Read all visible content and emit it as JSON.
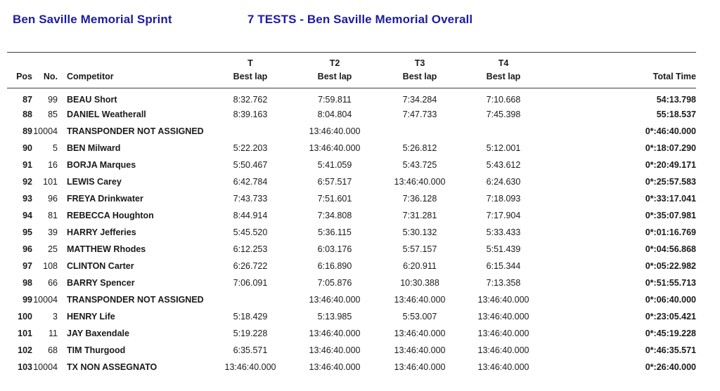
{
  "header": {
    "event_title": "Ben Saville Memorial Sprint",
    "overall_title": "7 TESTS - Ben Saville Memorial Overall",
    "title_color": "#1c1ca3"
  },
  "table": {
    "columns": {
      "pos": "Pos",
      "no": "No.",
      "competitor": "Competitor",
      "t1_top": "T",
      "t2_top": "T2",
      "t3_top": "T3",
      "t4_top": "T4",
      "best_lap": "Best lap",
      "total": "Total Time"
    },
    "rows": [
      {
        "pos": "87",
        "no": "99",
        "competitor": "BEAU Short",
        "t1": "8:32.762",
        "t2": "7:59.811",
        "t3": "7:34.284",
        "t4": "7:10.668",
        "total": "54:13.798"
      },
      {
        "pos": "88",
        "no": "85",
        "competitor": "DANIEL Weatherall",
        "t1": "8:39.163",
        "t2": "8:04.804",
        "t3": "7:47.733",
        "t4": "7:45.398",
        "total": "55:18.537"
      },
      {
        "pos": "89",
        "no": "10004",
        "competitor": "TRANSPONDER NOT ASSIGNED",
        "t1": "",
        "t2": "13:46:40.000",
        "t3": "",
        "t4": "",
        "total": "0*:46:40.000"
      },
      {
        "pos": "90",
        "no": "5",
        "competitor": "BEN Milward",
        "t1": "5:22.203",
        "t2": "13:46:40.000",
        "t3": "5:26.812",
        "t4": "5:12.001",
        "total": "0*:18:07.290"
      },
      {
        "pos": "91",
        "no": "16",
        "competitor": "BORJA Marques",
        "t1": "5:50.467",
        "t2": "5:41.059",
        "t3": "5:43.725",
        "t4": "5:43.612",
        "total": "0*:20:49.171"
      },
      {
        "pos": "92",
        "no": "101",
        "competitor": "LEWIS Carey",
        "t1": "6:42.784",
        "t2": "6:57.517",
        "t3": "13:46:40.000",
        "t4": "6:24.630",
        "total": "0*:25:57.583"
      },
      {
        "pos": "93",
        "no": "96",
        "competitor": "FREYA Drinkwater",
        "t1": "7:43.733",
        "t2": "7:51.601",
        "t3": "7:36.128",
        "t4": "7:18.093",
        "total": "0*:33:17.041"
      },
      {
        "pos": "94",
        "no": "81",
        "competitor": "REBECCA Houghton",
        "t1": "8:44.914",
        "t2": "7:34.808",
        "t3": "7:31.281",
        "t4": "7:17.904",
        "total": "0*:35:07.981"
      },
      {
        "pos": "95",
        "no": "39",
        "competitor": "HARRY Jefferies",
        "t1": "5:45.520",
        "t2": "5:36.115",
        "t3": "5:30.132",
        "t4": "5:33.433",
        "total": "0*:01:16.769"
      },
      {
        "pos": "96",
        "no": "25",
        "competitor": "MATTHEW Rhodes",
        "t1": "6:12.253",
        "t2": "6:03.176",
        "t3": "5:57.157",
        "t4": "5:51.439",
        "total": "0*:04:56.868"
      },
      {
        "pos": "97",
        "no": "108",
        "competitor": "CLINTON Carter",
        "t1": "6:26.722",
        "t2": "6:16.890",
        "t3": "6:20.911",
        "t4": "6:15.344",
        "total": "0*:05:22.982"
      },
      {
        "pos": "98",
        "no": "66",
        "competitor": "BARRY Spencer",
        "t1": "7:06.091",
        "t2": "7:05.876",
        "t3": "10:30.388",
        "t4": "7:13.358",
        "total": "0*:51:55.713"
      },
      {
        "pos": "99",
        "no": "10004",
        "competitor": "TRANSPONDER NOT ASSIGNED",
        "t1": "",
        "t2": "13:46:40.000",
        "t3": "13:46:40.000",
        "t4": "13:46:40.000",
        "total": "0*:06:40.000"
      },
      {
        "pos": "100",
        "no": "3",
        "competitor": "HENRY Life",
        "t1": "5:18.429",
        "t2": "5:13.985",
        "t3": "5:53.007",
        "t4": "13:46:40.000",
        "total": "0*:23:05.421"
      },
      {
        "pos": "101",
        "no": "11",
        "competitor": "JAY Baxendale",
        "t1": "5:19.228",
        "t2": "13:46:40.000",
        "t3": "13:46:40.000",
        "t4": "13:46:40.000",
        "total": "0*:45:19.228"
      },
      {
        "pos": "102",
        "no": "68",
        "competitor": "TIM Thurgood",
        "t1": "6:35.571",
        "t2": "13:46:40.000",
        "t3": "13:46:40.000",
        "t4": "13:46:40.000",
        "total": "0*:46:35.571"
      },
      {
        "pos": "103",
        "no": "10004",
        "competitor": "TX NON ASSEGNATO",
        "t1": "13:46:40.000",
        "t2": "13:46:40.000",
        "t3": "13:46:40.000",
        "t4": "13:46:40.000",
        "total": "0*:26:40.000"
      }
    ]
  }
}
